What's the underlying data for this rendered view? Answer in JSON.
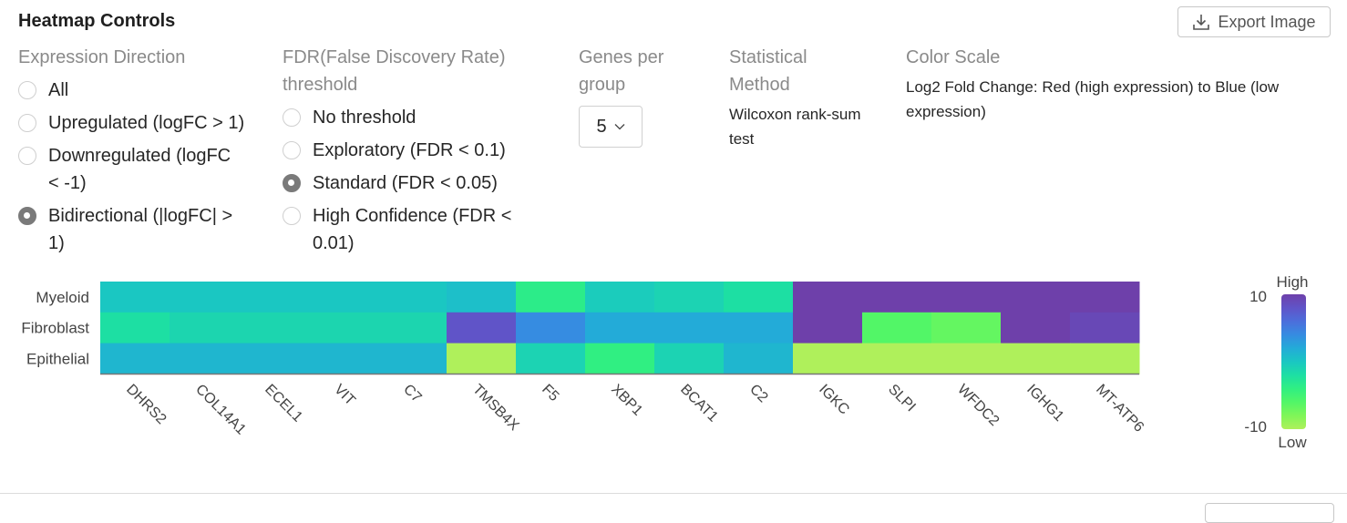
{
  "header": {
    "title": "Heatmap Controls",
    "export_label": "Export Image",
    "export_icon": "download-icon"
  },
  "controls": {
    "expression_direction": {
      "label": "Expression Direction",
      "options": [
        {
          "label": "All",
          "line2": "",
          "selected": false
        },
        {
          "label": "Upregulated (logFC > 1)",
          "line2": "",
          "selected": false
        },
        {
          "label": "Downregulated (logFC",
          "line2": "< -1)",
          "selected": false
        },
        {
          "label": "Bidirectional (|logFC| >",
          "line2": "1)",
          "selected": true
        }
      ]
    },
    "fdr": {
      "label_line1": "FDR(False Discovery Rate)",
      "label_line2": "threshold",
      "options": [
        {
          "label": "No threshold",
          "line2": "",
          "selected": false
        },
        {
          "label": "Exploratory (FDR < 0.1)",
          "line2": "",
          "selected": false
        },
        {
          "label": "Standard (FDR < 0.05)",
          "line2": "",
          "selected": true
        },
        {
          "label": "High Confidence (FDR <",
          "line2": "0.01)",
          "selected": false
        }
      ]
    },
    "genes_per_group": {
      "label_line1": "Genes per",
      "label_line2": "group",
      "value": "5"
    },
    "statistical_method": {
      "label_line1": "Statistical",
      "label_line2": "Method",
      "value_line1": "Wilcoxon rank-sum",
      "value_line2": "test"
    },
    "color_scale": {
      "label": "Color Scale",
      "value_line1": "Log2 Fold Change: Red (high expression) to Blue (low",
      "value_line2": "expression)"
    }
  },
  "chart_data": {
    "type": "heatmap",
    "rows": [
      "Myeloid",
      "Fibroblast",
      "Epithelial"
    ],
    "columns": [
      "DHRS2",
      "COL14A1",
      "ECEL1",
      "VIT",
      "C7",
      "TMSB4X",
      "F5",
      "XBP1",
      "BCAT1",
      "C2",
      "IGKC",
      "SLPI",
      "WFDC2",
      "IGHG1",
      "MT-ATP6"
    ],
    "values": [
      [
        0,
        0,
        0,
        0,
        0,
        0.6,
        -3.6,
        -0.4,
        -1,
        -2,
        10,
        10,
        10,
        10,
        10
      ],
      [
        -2,
        -1.2,
        -1.2,
        -1.2,
        -1.2,
        8,
        4,
        2,
        2,
        2,
        10,
        -6,
        -6.8,
        10,
        9.2
      ],
      [
        1.2,
        1.2,
        1.2,
        1.2,
        1.2,
        -10,
        -1,
        -4,
        -1,
        1.2,
        -10,
        -10,
        -10,
        -10,
        -10
      ]
    ],
    "colorbar": {
      "min": -10,
      "max": 10,
      "min_label": "-10",
      "max_label": "10",
      "high_label": "High",
      "low_label": "Low",
      "high_color": "#6e40aa",
      "low_color": "#aff05b"
    }
  }
}
